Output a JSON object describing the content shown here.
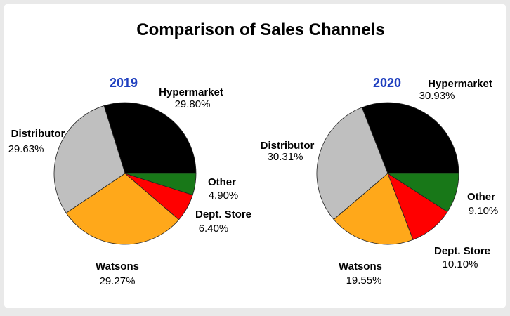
{
  "title": "Comparison of Sales Channels",
  "colors": {
    "Hypermarket": "#000000",
    "Other": "#187818",
    "Dept. Store": "#ff0000",
    "Watsons": "#ffa81a",
    "Distributor": "#bfbfbf",
    "year_title": "#1f3fbf",
    "slice_border": "#222222"
  },
  "chart_data": [
    {
      "type": "pie",
      "title": "2019",
      "start_angle_deg": 0,
      "direction": "counterclockwise",
      "slices": [
        {
          "label": "Hypermarket",
          "value": 29.8,
          "display": "29.80%"
        },
        {
          "label": "Distributor",
          "value": 29.63,
          "display": "29.63%"
        },
        {
          "label": "Watsons",
          "value": 29.27,
          "display": "29.27%"
        },
        {
          "label": "Dept. Store",
          "value": 6.4,
          "display": "6.40%"
        },
        {
          "label": "Other",
          "value": 4.9,
          "display": "4.90%"
        }
      ]
    },
    {
      "type": "pie",
      "title": "2020",
      "start_angle_deg": 0,
      "direction": "counterclockwise",
      "slices": [
        {
          "label": "Hypermarket",
          "value": 30.93,
          "display": "30.93%"
        },
        {
          "label": "Distributor",
          "value": 30.31,
          "display": "30.31%"
        },
        {
          "label": "Watsons",
          "value": 19.55,
          "display": "19.55%"
        },
        {
          "label": "Dept. Store",
          "value": 10.1,
          "display": "10.10%"
        },
        {
          "label": "Other",
          "value": 9.1,
          "display": "9.10%"
        }
      ]
    }
  ]
}
